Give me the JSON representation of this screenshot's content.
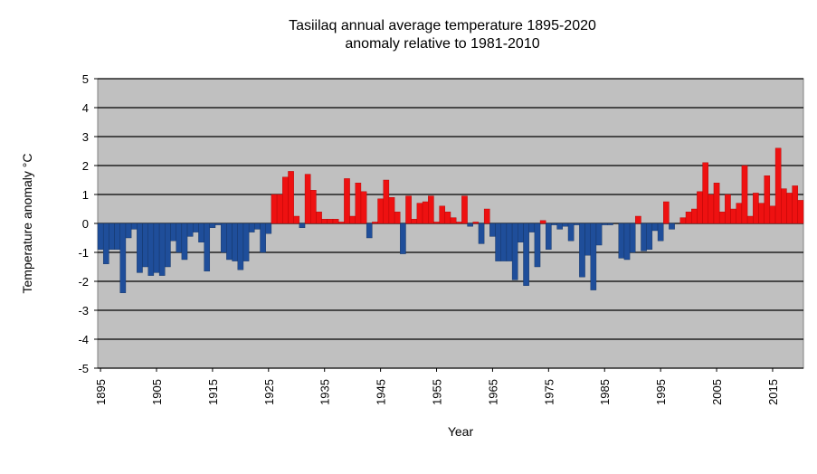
{
  "chart_data": {
    "type": "bar",
    "title": "Tasiilaq annual average temperature 1895-2020",
    "subtitle": "anomaly relative to 1981-2010",
    "xlabel": "Year",
    "ylabel": "Temperature anomaly °C",
    "ylim": [
      -5,
      5
    ],
    "yticks": [
      5,
      4,
      3,
      2,
      1,
      0,
      -1,
      -2,
      -3,
      -4,
      -5
    ],
    "xticks": [
      1895,
      1905,
      1915,
      1925,
      1935,
      1945,
      1955,
      1965,
      1975,
      1985,
      1995,
      2005,
      2015
    ],
    "grid": true,
    "legend": "none",
    "colors": {
      "positive": "#ee1111",
      "negative": "#1f4e9a",
      "plot_background": "#c0c0c0"
    },
    "series": [
      {
        "x": [
          1895,
          1896,
          1897,
          1898,
          1899,
          1900,
          1901,
          1902,
          1903,
          1904,
          1905,
          1906,
          1907,
          1908,
          1909,
          1910,
          1911,
          1912,
          1913,
          1914,
          1915,
          1916,
          1917,
          1918,
          1919,
          1920,
          1921,
          1922,
          1923,
          1924,
          1925,
          1926,
          1927,
          1928,
          1929,
          1930,
          1931,
          1932,
          1933,
          1934,
          1935,
          1936,
          1937,
          1938,
          1939,
          1940,
          1941,
          1942,
          1943,
          1944,
          1945,
          1946,
          1947,
          1948,
          1949,
          1950,
          1951,
          1952,
          1953,
          1954,
          1955,
          1956,
          1957,
          1958,
          1959,
          1960,
          1961,
          1962,
          1963,
          1964,
          1965,
          1966,
          1967,
          1968,
          1969,
          1970,
          1971,
          1972,
          1973,
          1974,
          1975,
          1976,
          1977,
          1978,
          1979,
          1980,
          1981,
          1982,
          1983,
          1984,
          1985,
          1986,
          1987,
          1988,
          1989,
          1990,
          1991,
          1992,
          1993,
          1994,
          1995,
          1996,
          1997,
          1998,
          1999,
          2000,
          2001,
          2002,
          2003,
          2004,
          2005,
          2006,
          2007,
          2008,
          2009,
          2010,
          2011,
          2012,
          2013,
          2014,
          2015,
          2016,
          2017,
          2018,
          2019,
          2020
        ],
        "values": [
          -0.9,
          -1.4,
          -0.9,
          -0.9,
          -2.4,
          -0.5,
          -0.2,
          -1.7,
          -1.5,
          -1.8,
          -1.7,
          -1.8,
          -1.5,
          -0.6,
          -1.0,
          -1.25,
          -0.45,
          -0.3,
          -0.65,
          -1.65,
          -0.15,
          -0.05,
          -1.0,
          -1.25,
          -1.3,
          -1.6,
          -1.3,
          -0.3,
          -0.2,
          -1.0,
          -0.35,
          1.0,
          1.0,
          1.6,
          1.8,
          0.25,
          -0.15,
          1.7,
          1.15,
          0.4,
          0.15,
          0.15,
          0.15,
          0.05,
          1.55,
          0.25,
          1.4,
          1.1,
          -0.5,
          0.05,
          0.85,
          1.5,
          0.9,
          0.4,
          -1.05,
          0.95,
          0.15,
          0.7,
          0.75,
          0.95,
          0.05,
          0.6,
          0.4,
          0.2,
          0.05,
          0.95,
          -0.1,
          0.05,
          -0.7,
          0.5,
          -0.45,
          -1.3,
          -1.3,
          -1.3,
          -1.95,
          -0.65,
          -2.15,
          -0.3,
          -1.5,
          0.1,
          -0.9,
          -0.05,
          -0.2,
          -0.1,
          -0.6,
          -0.05,
          -1.85,
          -1.1,
          -2.3,
          -0.75,
          -0.05,
          -0.05,
          0.0,
          -1.2,
          -1.25,
          -1.0,
          0.25,
          -0.95,
          -0.9,
          -0.25,
          -0.6,
          0.75,
          -0.2,
          0.0,
          0.2,
          0.4,
          0.5,
          1.1,
          2.1,
          1.0,
          1.4,
          0.4,
          1.0,
          0.5,
          0.7,
          2.0,
          0.25,
          1.05,
          0.7,
          1.65,
          0.6,
          2.6,
          1.2,
          1.05,
          1.3,
          0.8
        ]
      }
    ]
  }
}
